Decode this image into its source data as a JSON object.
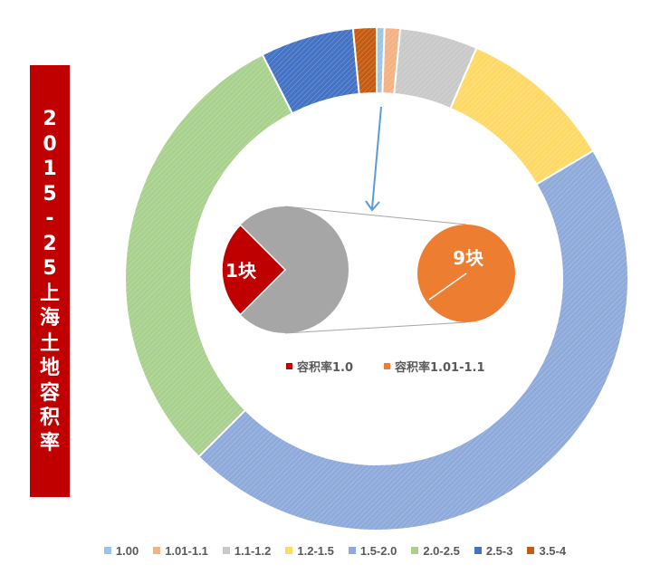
{
  "title_chars": [
    "2",
    "0",
    "1",
    "5",
    "-",
    "2",
    "5",
    "上",
    "海",
    "土",
    "地",
    "容",
    "积",
    "率"
  ],
  "chart_data": [
    {
      "type": "pie",
      "categories": [
        "1.00",
        "1.01-1.1",
        "1.1-1.2",
        "1.2-1.5",
        "1.5-2.0",
        "2.0-2.5",
        "2.5-3",
        "3.5-4"
      ],
      "values": [
        0.5,
        1.0,
        5.0,
        10.0,
        46.0,
        30.0,
        6.0,
        1.5
      ],
      "colors": [
        "#9dc3e6",
        "#f4b183",
        "#c9c9c9",
        "#ffd966",
        "#8eaadb",
        "#a9d18e",
        "#4472c4",
        "#c55a11"
      ],
      "legend_position": "bottom"
    },
    {
      "type": "pie",
      "categories": [
        "容积率1.0"
      ],
      "slice_label": "1块",
      "values": [
        1
      ],
      "colors": [
        "#c00000",
        "#a6a6a6"
      ]
    },
    {
      "type": "pie",
      "categories": [
        "容积率1.01-1.1"
      ],
      "slice_label": "9块",
      "values": [
        9
      ],
      "colors": [
        "#ed7d31"
      ]
    }
  ]
}
